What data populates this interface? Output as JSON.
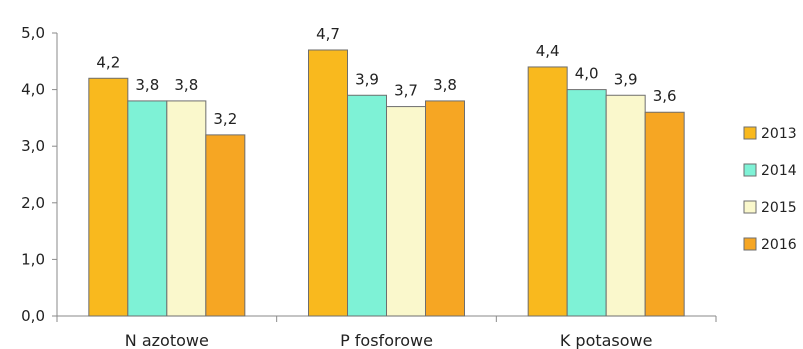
{
  "chart_data": {
    "type": "bar",
    "categories": [
      "N azotowe",
      "P fosforowe",
      "K potasowe"
    ],
    "series": [
      {
        "name": "2013",
        "values": [
          4.2,
          4.7,
          4.4
        ],
        "labels": [
          "4,2",
          "4,7",
          "4,4"
        ],
        "color": "#F9B91E"
      },
      {
        "name": "2014",
        "values": [
          3.8,
          3.9,
          4.0
        ],
        "labels": [
          "3,8",
          "3,9",
          "4,0"
        ],
        "color": "#7EF2D6"
      },
      {
        "name": "2015",
        "values": [
          3.8,
          3.7,
          3.9
        ],
        "labels": [
          "3,8",
          "3,7",
          "3,9"
        ],
        "color": "#FAF8CC"
      },
      {
        "name": "2016",
        "values": [
          3.2,
          3.8,
          3.6
        ],
        "labels": [
          "3,2",
          "3,8",
          "3,6"
        ],
        "color": "#F6A623"
      }
    ],
    "ylim": [
      0,
      5
    ],
    "yticks": [
      0,
      1,
      2,
      3,
      4,
      5
    ],
    "ytick_labels": [
      "0,0",
      "1,0",
      "2,0",
      "3,0",
      "4,0",
      "5,0"
    ],
    "grid": false,
    "legend_position": "right",
    "title": "",
    "xlabel": "",
    "ylabel": ""
  }
}
